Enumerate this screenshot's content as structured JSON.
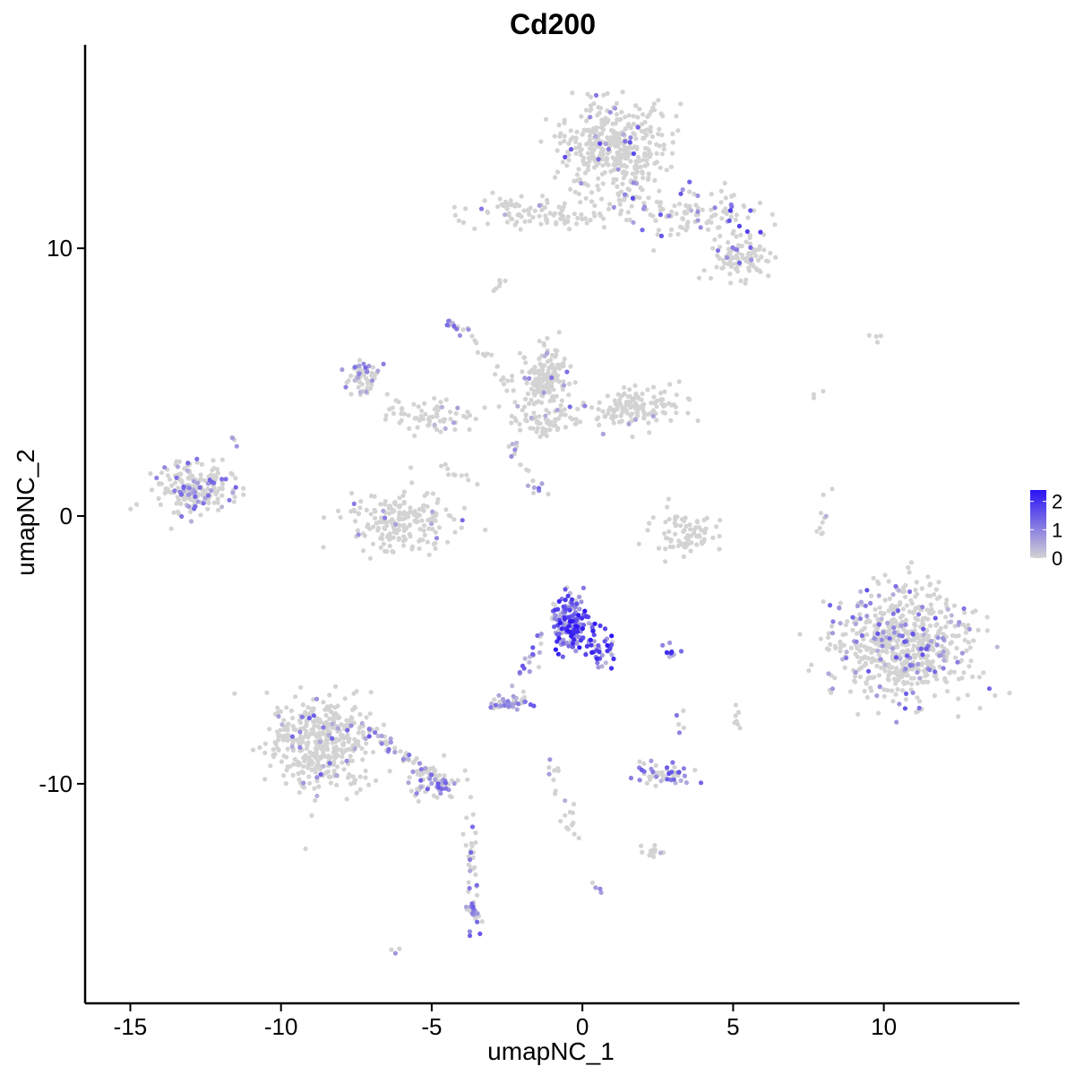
{
  "chart_data": {
    "type": "scatter",
    "title": "Cd200",
    "xlabel": "umapNC_1",
    "ylabel": "umapNC_2",
    "xlim": [
      -16.5,
      14.5
    ],
    "ylim": [
      -18.2,
      17.6
    ],
    "x_ticks": [
      {
        "value": -15,
        "label": "-15"
      },
      {
        "value": -10,
        "label": "-10"
      },
      {
        "value": -5,
        "label": "-5"
      },
      {
        "value": 0,
        "label": "0"
      },
      {
        "value": 5,
        "label": "5"
      },
      {
        "value": 10,
        "label": "10"
      }
    ],
    "y_ticks": [
      {
        "value": 10,
        "label": "10"
      },
      {
        "value": 0,
        "label": "0"
      },
      {
        "value": -10,
        "label": "-10"
      }
    ],
    "legend": {
      "placement": "right",
      "min": 0,
      "max": 2.4,
      "low_color": "#d3d3d3",
      "high_color": "#2a12f5",
      "ticks": [
        {
          "value": 2,
          "label": "2"
        },
        {
          "value": 1,
          "label": "1"
        },
        {
          "value": 0,
          "label": "0"
        }
      ]
    },
    "grid": false,
    "point_color_low": "#d3d3d3",
    "point_color_high": "#2a12f5",
    "clusters": [
      {
        "cx": 1.0,
        "cy": 13.8,
        "sx": 1.3,
        "sy": 1.2,
        "n": 380,
        "expr": 0.08,
        "emax": 1.8
      },
      {
        "cx": 3.8,
        "cy": 11.3,
        "sx": 1.5,
        "sy": 0.7,
        "n": 120,
        "expr": 0.22,
        "emax": 2.0
      },
      {
        "cx": 5.3,
        "cy": 9.6,
        "sx": 0.9,
        "sy": 0.5,
        "n": 90,
        "expr": 0.05,
        "emax": 1.4
      },
      {
        "cx": -2.0,
        "cy": 11.4,
        "sx": 1.2,
        "sy": 0.4,
        "n": 70,
        "expr": 0.03,
        "emax": 1.2
      },
      {
        "cx": -0.6,
        "cy": 11.1,
        "sx": 0.9,
        "sy": 0.2,
        "n": 25,
        "expr": 0.0,
        "emax": 0.5
      },
      {
        "cx": -12.9,
        "cy": 1.0,
        "sx": 0.9,
        "sy": 0.7,
        "n": 210,
        "expr": 0.18,
        "emax": 1.4
      },
      {
        "cx": -7.3,
        "cy": 5.2,
        "sx": 0.4,
        "sy": 0.5,
        "n": 60,
        "expr": 0.25,
        "emax": 1.3
      },
      {
        "cx": -5.0,
        "cy": 3.8,
        "sx": 1.0,
        "sy": 0.5,
        "n": 70,
        "expr": 0.05,
        "emax": 1.0
      },
      {
        "cx": -1.2,
        "cy": 5.2,
        "sx": 0.6,
        "sy": 0.8,
        "n": 150,
        "expr": 0.05,
        "emax": 1.3
      },
      {
        "cx": 1.8,
        "cy": 4.0,
        "sx": 1.0,
        "sy": 0.5,
        "n": 140,
        "expr": 0.05,
        "emax": 1.2
      },
      {
        "cx": -1.3,
        "cy": 3.6,
        "sx": 1.0,
        "sy": 0.4,
        "n": 60,
        "expr": 0.05,
        "emax": 1.1
      },
      {
        "cx": -6.0,
        "cy": -0.2,
        "sx": 1.2,
        "sy": 0.8,
        "n": 200,
        "expr": 0.05,
        "emax": 1.4
      },
      {
        "cx": 3.5,
        "cy": -0.7,
        "sx": 0.9,
        "sy": 0.6,
        "n": 80,
        "expr": 0.0,
        "emax": 0.5
      },
      {
        "cx": -0.4,
        "cy": -4.0,
        "sx": 0.5,
        "sy": 0.7,
        "n": 170,
        "expr": 0.85,
        "emax": 2.4
      },
      {
        "cx": 0.7,
        "cy": -5.0,
        "sx": 0.4,
        "sy": 0.5,
        "n": 35,
        "expr": 0.95,
        "emax": 2.4
      },
      {
        "cx": -2.4,
        "cy": -7.0,
        "sx": 0.5,
        "sy": 0.2,
        "n": 40,
        "expr": 0.55,
        "emax": 1.6
      },
      {
        "cx": 2.6,
        "cy": -9.6,
        "sx": 0.7,
        "sy": 0.25,
        "n": 55,
        "expr": 0.5,
        "emax": 1.6
      },
      {
        "cx": 10.6,
        "cy": -4.8,
        "sx": 1.6,
        "sy": 1.5,
        "n": 650,
        "expr": 0.18,
        "emax": 1.6
      },
      {
        "cx": -8.7,
        "cy": -8.4,
        "sx": 1.2,
        "sy": 1.2,
        "n": 420,
        "expr": 0.05,
        "emax": 1.5
      },
      {
        "cx": -4.8,
        "cy": -9.9,
        "sx": 0.9,
        "sy": 0.5,
        "n": 60,
        "expr": 0.3,
        "emax": 1.5
      },
      {
        "cx": -3.6,
        "cy": -14.8,
        "sx": 0.25,
        "sy": 0.6,
        "n": 30,
        "expr": 0.6,
        "emax": 1.6
      },
      {
        "cx": 2.3,
        "cy": -12.5,
        "sx": 0.3,
        "sy": 0.2,
        "n": 12,
        "expr": 0.05,
        "emax": 0.6
      },
      {
        "cx": 5.1,
        "cy": -7.5,
        "sx": 0.1,
        "sy": 0.3,
        "n": 8,
        "expr": 0.0,
        "emax": 0.3
      }
    ],
    "strands": [
      {
        "x1": 1.0,
        "y1": 11.5,
        "x2": 2.2,
        "y2": 13.5,
        "n": 25,
        "expr": 0.05,
        "emax": 1.0
      },
      {
        "x1": -4.2,
        "y1": 7.5,
        "x2": -1.2,
        "y2": 3.0,
        "n": 30,
        "expr": 0.1,
        "emax": 1.6
      },
      {
        "x1": -4.4,
        "y1": 7.3,
        "x2": -4.0,
        "y2": 6.9,
        "n": 12,
        "expr": 0.7,
        "emax": 1.6
      },
      {
        "x1": -2.3,
        "y1": 2.6,
        "x2": -1.4,
        "y2": 0.8,
        "n": 18,
        "expr": 0.6,
        "emax": 1.7
      },
      {
        "x1": -4.8,
        "y1": 2.0,
        "x2": -3.6,
        "y2": 1.2,
        "n": 10,
        "expr": 0.05,
        "emax": 0.8
      },
      {
        "x1": -1.4,
        "y1": -4.5,
        "x2": -2.2,
        "y2": -6.5,
        "n": 20,
        "expr": 0.6,
        "emax": 1.6
      },
      {
        "x1": -7.2,
        "y1": -7.8,
        "x2": -4.5,
        "y2": -10.2,
        "n": 60,
        "expr": 0.35,
        "emax": 1.6
      },
      {
        "x1": -3.8,
        "y1": -10.6,
        "x2": -3.6,
        "y2": -14.0,
        "n": 25,
        "expr": 0.15,
        "emax": 1.4
      },
      {
        "x1": -1.0,
        "y1": -9.2,
        "x2": -0.3,
        "y2": -12.0,
        "n": 22,
        "expr": 0.1,
        "emax": 1.0
      },
      {
        "x1": 7.7,
        "y1": -1.0,
        "x2": 8.2,
        "y2": 0.9,
        "n": 10,
        "expr": 0.1,
        "emax": 1.0
      },
      {
        "x1": 8.0,
        "y1": 4.8,
        "x2": 7.7,
        "y2": 4.5,
        "n": 3,
        "expr": 0.0,
        "emax": 0.3
      },
      {
        "x1": 9.5,
        "y1": 6.7,
        "x2": 10.0,
        "y2": 6.8,
        "n": 4,
        "expr": 0.0,
        "emax": 0.3
      },
      {
        "x1": -11.8,
        "y1": 2.9,
        "x2": -11.5,
        "y2": 2.6,
        "n": 4,
        "expr": 0.2,
        "emax": 0.8
      },
      {
        "x1": -6.0,
        "y1": -16.0,
        "x2": -6.2,
        "y2": -16.2,
        "n": 3,
        "expr": 0.2,
        "emax": 0.8
      },
      {
        "x1": 0.4,
        "y1": -13.8,
        "x2": 0.6,
        "y2": -14.0,
        "n": 4,
        "expr": 0.4,
        "emax": 1.0
      },
      {
        "x1": 2.6,
        "y1": -5.1,
        "x2": 3.3,
        "y2": -4.9,
        "n": 10,
        "expr": 1.0,
        "emax": 2.2
      },
      {
        "x1": 3.2,
        "y1": -8.0,
        "x2": 3.4,
        "y2": -7.4,
        "n": 5,
        "expr": 0.5,
        "emax": 1.2
      },
      {
        "x1": -3.0,
        "y1": 8.5,
        "x2": -2.6,
        "y2": 8.9,
        "n": 6,
        "expr": 0.0,
        "emax": 0.3
      }
    ]
  }
}
